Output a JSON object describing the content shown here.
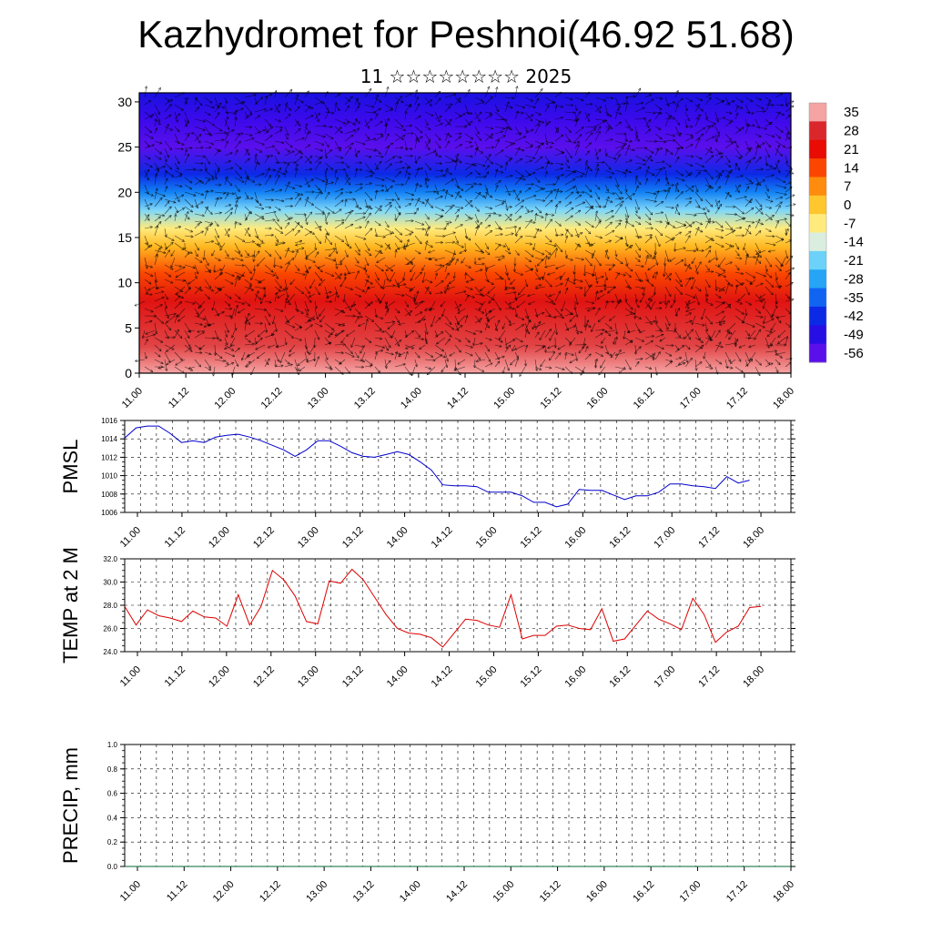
{
  "title": "Kazhydromet for Peshnoi(46.92 51.68)",
  "subtitle": "11 ☆☆☆☆☆☆☆☆ 2025",
  "chart_data": [
    {
      "type": "heatmap",
      "name": "cross-section",
      "y_ticks": [
        "0",
        "5",
        "10",
        "15",
        "20",
        "25",
        "30"
      ],
      "ylim": [
        0,
        31
      ],
      "x_ticks": [
        "11.00",
        "11.12",
        "12.00",
        "12.12",
        "13.00",
        "13.12",
        "14.00",
        "14.12",
        "15.00",
        "15.12",
        "16.00",
        "16.12",
        "17.00",
        "17.12",
        "18.00"
      ],
      "colorbar_labels": [
        "35",
        "28",
        "21",
        "14",
        "7",
        "0",
        "-7",
        "-14",
        "-21",
        "-28",
        "-35",
        "-42",
        "-49",
        "-56"
      ],
      "temperature_by_height": [
        {
          "height": 0,
          "value": 35
        },
        {
          "height": 3,
          "value": 30
        },
        {
          "height": 8,
          "value": 24
        },
        {
          "height": 11,
          "value": 14
        },
        {
          "height": 14,
          "value": 2
        },
        {
          "height": 16,
          "value": -7
        },
        {
          "height": 18,
          "value": -20
        },
        {
          "height": 20,
          "value": -32
        },
        {
          "height": 22,
          "value": -42
        },
        {
          "height": 25,
          "value": -56
        },
        {
          "height": 28,
          "value": -52
        },
        {
          "height": 31,
          "value": -47
        }
      ],
      "overlay": "wind arrows"
    },
    {
      "type": "line",
      "name": "PMSL",
      "ylabel": "PMSL",
      "ylim": [
        1006,
        1016
      ],
      "y_ticks": [
        "1006",
        "1008",
        "1010",
        "1012",
        "1014",
        "1016"
      ],
      "x_ticks": [
        "11.00",
        "11.12",
        "12.00",
        "12.12",
        "13.00",
        "13.12",
        "14.00",
        "14.12",
        "15.00",
        "15.12",
        "16.00",
        "16.12",
        "17.00",
        "17.12",
        "18.00"
      ],
      "x_range": [
        0,
        168
      ],
      "color": "#0000cc",
      "points": [
        [
          0,
          1014.1
        ],
        [
          3,
          1015.2
        ],
        [
          6,
          1015.4
        ],
        [
          9,
          1015.4
        ],
        [
          12,
          1014.6
        ],
        [
          15,
          1013.6
        ],
        [
          18,
          1013.8
        ],
        [
          21,
          1013.6
        ],
        [
          24,
          1014.2
        ],
        [
          27,
          1014.4
        ],
        [
          30,
          1014.5
        ],
        [
          33,
          1014.2
        ],
        [
          36,
          1013.8
        ],
        [
          39,
          1013.3
        ],
        [
          42,
          1012.8
        ],
        [
          45,
          1012.1
        ],
        [
          48,
          1012.8
        ],
        [
          51,
          1013.8
        ],
        [
          54,
          1013.8
        ],
        [
          57,
          1013.2
        ],
        [
          60,
          1012.5
        ],
        [
          63,
          1012.1
        ],
        [
          66,
          1012.0
        ],
        [
          69,
          1012.3
        ],
        [
          72,
          1012.6
        ],
        [
          75,
          1012.3
        ],
        [
          78,
          1011.5
        ],
        [
          81,
          1010.6
        ],
        [
          84,
          1009.0
        ],
        [
          87,
          1008.9
        ],
        [
          90,
          1008.9
        ],
        [
          93,
          1008.8
        ],
        [
          96,
          1008.2
        ],
        [
          99,
          1008.2
        ],
        [
          102,
          1008.2
        ],
        [
          105,
          1007.8
        ],
        [
          108,
          1007.1
        ],
        [
          111,
          1007.1
        ],
        [
          114,
          1006.6
        ],
        [
          117,
          1006.9
        ],
        [
          120,
          1008.5
        ],
        [
          123,
          1008.4
        ],
        [
          126,
          1008.4
        ],
        [
          129,
          1007.9
        ],
        [
          132,
          1007.4
        ],
        [
          135,
          1007.8
        ],
        [
          138,
          1007.8
        ],
        [
          141,
          1008.2
        ],
        [
          144,
          1009.1
        ],
        [
          147,
          1009.1
        ],
        [
          150,
          1008.9
        ],
        [
          153,
          1008.8
        ],
        [
          156,
          1008.6
        ],
        [
          159,
          1009.9
        ],
        [
          162,
          1009.2
        ],
        [
          165,
          1009.5
        ]
      ]
    },
    {
      "type": "line",
      "name": "TEMP at 2 M",
      "ylabel": "TEMP at 2 M",
      "ylim": [
        24,
        32
      ],
      "y_ticks": [
        "24.0",
        "26.0",
        "28.0",
        "30.0",
        "32.0"
      ],
      "x_ticks": [
        "11.00",
        "11.12",
        "12.00",
        "12.12",
        "13.00",
        "13.12",
        "14.00",
        "14.12",
        "15.00",
        "15.12",
        "16.00",
        "16.12",
        "17.00",
        "17.12",
        "18.00"
      ],
      "x_range": [
        0,
        168
      ],
      "color": "#dd0000",
      "points": [
        [
          0,
          27.9
        ],
        [
          3,
          26.3
        ],
        [
          6,
          27.6
        ],
        [
          9,
          27.1
        ],
        [
          12,
          26.9
        ],
        [
          15,
          26.6
        ],
        [
          18,
          27.5
        ],
        [
          21,
          27.0
        ],
        [
          24,
          26.9
        ],
        [
          27,
          26.2
        ],
        [
          30,
          28.9
        ],
        [
          33,
          26.3
        ],
        [
          36,
          27.9
        ],
        [
          39,
          31.0
        ],
        [
          42,
          30.2
        ],
        [
          45,
          28.8
        ],
        [
          48,
          26.6
        ],
        [
          51,
          26.4
        ],
        [
          54,
          30.1
        ],
        [
          57,
          29.9
        ],
        [
          60,
          31.1
        ],
        [
          63,
          30.2
        ],
        [
          66,
          28.7
        ],
        [
          69,
          27.2
        ],
        [
          72,
          26.0
        ],
        [
          75,
          25.6
        ],
        [
          78,
          25.5
        ],
        [
          81,
          25.2
        ],
        [
          84,
          24.4
        ],
        [
          87,
          25.6
        ],
        [
          90,
          26.8
        ],
        [
          93,
          26.7
        ],
        [
          96,
          26.3
        ],
        [
          99,
          26.1
        ],
        [
          102,
          28.9
        ],
        [
          105,
          25.1
        ],
        [
          108,
          25.4
        ],
        [
          111,
          25.4
        ],
        [
          114,
          26.2
        ],
        [
          117,
          26.3
        ],
        [
          120,
          26.0
        ],
        [
          123,
          25.9
        ],
        [
          126,
          27.7
        ],
        [
          129,
          24.9
        ],
        [
          132,
          25.1
        ],
        [
          135,
          26.3
        ],
        [
          138,
          27.5
        ],
        [
          141,
          26.8
        ],
        [
          144,
          26.4
        ],
        [
          147,
          25.9
        ],
        [
          150,
          28.6
        ],
        [
          153,
          27.2
        ],
        [
          156,
          24.8
        ],
        [
          159,
          25.7
        ],
        [
          162,
          26.2
        ],
        [
          165,
          27.8
        ],
        [
          168,
          27.9
        ]
      ]
    },
    {
      "type": "line",
      "name": "PRECIP, mm",
      "ylabel": "PRECIP, mm",
      "ylim": [
        0,
        1
      ],
      "y_ticks": [
        "0.0",
        "0.2",
        "0.4",
        "0.6",
        "0.8",
        "1.0"
      ],
      "x_ticks": [
        "11.00",
        "11.12",
        "12.00",
        "12.12",
        "13.00",
        "13.12",
        "14.00",
        "14.12",
        "15.00",
        "15.12",
        "16.00",
        "16.12",
        "17.00",
        "17.12",
        "18.00"
      ],
      "x_range": [
        0,
        168
      ],
      "color": "#006633",
      "points": [
        [
          0,
          0
        ],
        [
          168,
          0
        ]
      ]
    }
  ]
}
